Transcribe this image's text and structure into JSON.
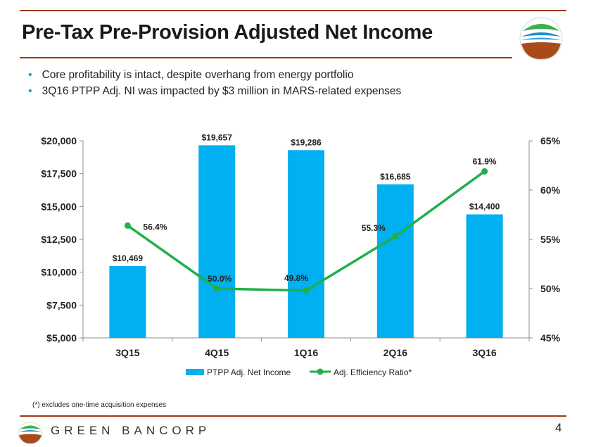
{
  "header": {
    "title": "Pre-Tax Pre-Provision Adjusted Net Income",
    "logo": "green-bancorp-logo-icon"
  },
  "bullets": [
    "Core profitability is intact, despite overhang from energy portfolio",
    "3Q16 PTPP Adj. NI was impacted by $3 million in MARS-related expenses"
  ],
  "chart_data": {
    "type": "bar",
    "title": "",
    "categories": [
      "3Q15",
      "4Q15",
      "1Q16",
      "2Q16",
      "3Q16"
    ],
    "series": [
      {
        "name": "PTPP Adj. Net Income",
        "type": "bar",
        "axis": "left",
        "values": [
          10469,
          19657,
          19286,
          16685,
          14400
        ],
        "labels": [
          "$10,469",
          "$19,657",
          "$19,286",
          "$16,685",
          "$14,400"
        ],
        "color": "#00b0f0"
      },
      {
        "name": "Adj. Efficiency Ratio*",
        "type": "line",
        "axis": "right",
        "values": [
          56.4,
          50.0,
          49.8,
          55.3,
          61.9
        ],
        "labels": [
          "56.4%",
          "50.0%",
          "49.8%",
          "55.3%",
          "61.9%"
        ],
        "color": "#1fb04b"
      }
    ],
    "y_left": {
      "min": 5000,
      "max": 20000,
      "ticks": [
        5000,
        7500,
        10000,
        12500,
        15000,
        17500,
        20000
      ],
      "tick_labels": [
        "$5,000",
        "$7,500",
        "$10,000",
        "$12,500",
        "$15,000",
        "$17,500",
        "$20,000"
      ]
    },
    "y_right": {
      "min": 45,
      "max": 65,
      "ticks": [
        45,
        50,
        55,
        60,
        65
      ],
      "tick_labels": [
        "45%",
        "50%",
        "55%",
        "60%",
        "65%"
      ]
    },
    "grid": false,
    "legend_position": "bottom"
  },
  "footnote": "(*) excludes  one-time acquisition expenses",
  "footer": {
    "brand": "GREEN BANCORP",
    "page_number": "4"
  }
}
